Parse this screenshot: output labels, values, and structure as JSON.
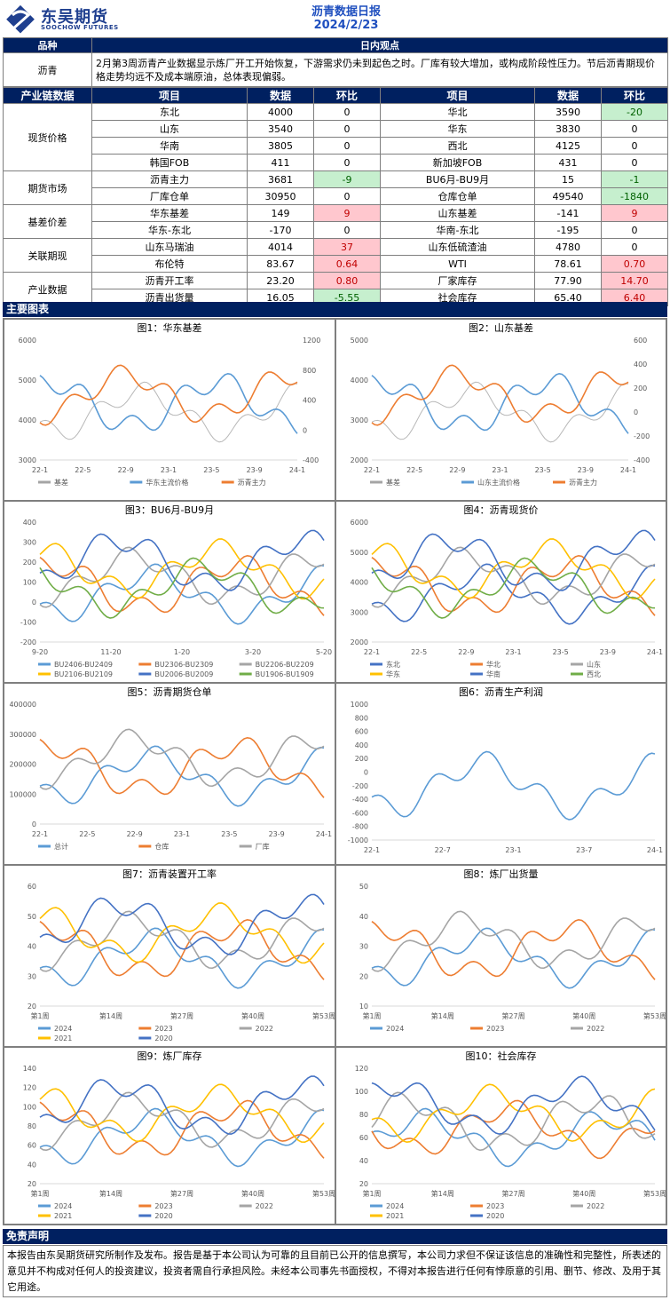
{
  "header": {
    "logo_main": "东吴期货",
    "logo_sub": "SOOCHOW FUTURES",
    "title": "沥青数据日报",
    "date": "2024/2/23"
  },
  "summary": {
    "col1": "品种",
    "col2": "日内观点",
    "variety": "沥青",
    "text": "2月第3周沥青产业数据显示炼厂开工开始恢复，下游需求仍未到起色之时。厂库有较大增加，或构成阶段性压力。节后沥青期现价格走势均远不及成本端原油，总体表现偏弱。"
  },
  "table": {
    "headers": [
      "产业链数据",
      "项目",
      "数据",
      "环比",
      "项目",
      "数据",
      "环比"
    ],
    "groups": [
      {
        "category": "现货价格",
        "rows": [
          [
            "东北",
            "4000",
            "0",
            "",
            "华北",
            "3590",
            "-20",
            "neg"
          ],
          [
            "山东",
            "3540",
            "0",
            "",
            "华东",
            "3830",
            "0",
            ""
          ],
          [
            "华南",
            "3805",
            "0",
            "",
            "西北",
            "4125",
            "0",
            ""
          ],
          [
            "韩国FOB",
            "411",
            "0",
            "",
            "新加坡FOB",
            "431",
            "0",
            ""
          ]
        ]
      },
      {
        "category": "期货市场",
        "rows": [
          [
            "沥青主力",
            "3681",
            "-9",
            "neg",
            "BU6月-BU9月",
            "15",
            "-1",
            "neg"
          ],
          [
            "厂库仓单",
            "30950",
            "0",
            "",
            "仓库仓单",
            "49540",
            "-1840",
            "neg"
          ]
        ]
      },
      {
        "category": "基差价差",
        "rows": [
          [
            "华东基差",
            "149",
            "9",
            "pos",
            "山东基差",
            "-141",
            "9",
            "pos"
          ],
          [
            "华东-东北",
            "-170",
            "0",
            "",
            "华南-东北",
            "-195",
            "0",
            ""
          ]
        ]
      },
      {
        "category": "关联期现",
        "rows": [
          [
            "山东马瑞油",
            "4014",
            "37",
            "pos",
            "山东低硫渣油",
            "4780",
            "0",
            ""
          ],
          [
            "布伦特",
            "83.67",
            "0.64",
            "pos",
            "WTI",
            "78.61",
            "0.70",
            "pos"
          ]
        ]
      },
      {
        "category": "产业数据",
        "rows": [
          [
            "沥青开工率",
            "23.20",
            "0.80",
            "pos",
            "厂家库存",
            "77.90",
            "14.70",
            "pos"
          ],
          [
            "沥青出货量",
            "16.05",
            "-5.55",
            "neg",
            "社会库存",
            "65.40",
            "6.40",
            "pos"
          ]
        ]
      }
    ]
  },
  "section_charts": "主要图表",
  "colors": {
    "navy": "#002060",
    "blue": "#5b9bd5",
    "orange": "#ed7d31",
    "gray": "#a5a5a5",
    "yellow": "#ffc000",
    "darkblue": "#4472c4",
    "green": "#70ad47"
  },
  "charts": {
    "c1": {
      "title": "图1：华东基差",
      "xticks": [
        "22-1",
        "22-5",
        "22-9",
        "23-1",
        "23-5",
        "23-9",
        "24-1"
      ],
      "yticks": [
        "6000",
        "5000",
        "4000",
        "3000"
      ],
      "y2ticks": [
        "1200",
        "800",
        "400",
        "0",
        "-400"
      ],
      "legend": [
        "基差",
        "华东主流价格",
        "沥青主力"
      ]
    },
    "c2": {
      "title": "图2：山东基差",
      "xticks": [
        "22-1",
        "22-5",
        "22-9",
        "23-1",
        "23-5",
        "23-9",
        "24-1"
      ],
      "yticks": [
        "5000",
        "4000",
        "3000",
        "2000"
      ],
      "y2ticks": [
        "600",
        "400",
        "200",
        "0",
        "-200",
        "-400"
      ],
      "legend": [
        "基差",
        "山东主流价格",
        "沥青主力"
      ]
    },
    "c3": {
      "title": "图3：BU6月-BU9月",
      "xticks": [
        "9-20",
        "11-20",
        "1-20",
        "3-20",
        "5-20"
      ],
      "yticks": [
        "400",
        "300",
        "200",
        "100",
        "0",
        "-100",
        "-200"
      ],
      "legend": [
        "BU2406-BU2409",
        "BU2306-BU2309",
        "BU2206-BU2209",
        "BU2106-BU2109",
        "BU2006-BU2009",
        "BU1906-BU1909"
      ]
    },
    "c4": {
      "title": "图4：沥青现货价",
      "xticks": [
        "22-1",
        "22-5",
        "22-9",
        "23-1",
        "23-5",
        "23-9",
        "24-1"
      ],
      "yticks": [
        "6000",
        "5000",
        "4000",
        "3000",
        "2000"
      ],
      "legend": [
        "东北",
        "华北",
        "山东",
        "华东",
        "华南",
        "西北"
      ]
    },
    "c5": {
      "title": "图5：沥青期货仓单",
      "xticks": [
        "22-1",
        "22-5",
        "22-9",
        "23-1",
        "23-5",
        "23-9",
        "24-1"
      ],
      "yticks": [
        "400000",
        "300000",
        "200000",
        "100000",
        "0"
      ],
      "legend": [
        "总计",
        "仓库",
        "厂库"
      ]
    },
    "c6": {
      "title": "图6：沥青生产利润",
      "xticks": [
        "22-1",
        "22-7",
        "23-1",
        "23-7",
        "24-1"
      ],
      "yticks": [
        "1000",
        "800",
        "600",
        "400",
        "200",
        "0",
        "-200",
        "-400",
        "-600",
        "-800",
        "-1000"
      ],
      "legend": []
    },
    "c7": {
      "title": "图7：沥青装置开工率",
      "xticks": [
        "第1周",
        "第14周",
        "第27周",
        "第40周",
        "第53周"
      ],
      "yticks": [
        "60",
        "50",
        "40",
        "30",
        "20"
      ],
      "legend": [
        "2024",
        "2023",
        "2022",
        "2021",
        "2020"
      ]
    },
    "c8": {
      "title": "图8：炼厂出货量",
      "xticks": [
        "第1周",
        "第14周",
        "第27周",
        "第40周",
        "第53周"
      ],
      "yticks": [
        "50",
        "40",
        "30",
        "20",
        "10"
      ],
      "legend": [
        "2024",
        "2023",
        "2022"
      ]
    },
    "c9": {
      "title": "图9：炼厂库存",
      "xticks": [
        "第1周",
        "第14周",
        "第27周",
        "第40周",
        "第53周"
      ],
      "yticks": [
        "140",
        "120",
        "100",
        "80",
        "60",
        "40",
        "20"
      ],
      "legend": [
        "2024",
        "2023",
        "2022",
        "2021",
        "2020"
      ]
    },
    "c10": {
      "title": "图10：社会库存",
      "xticks": [
        "第1周",
        "第14周",
        "第27周",
        "第40周",
        "第53周"
      ],
      "yticks": [
        "120",
        "100",
        "80",
        "60",
        "40",
        "20"
      ],
      "legend": [
        "2024",
        "2023",
        "2022",
        "2021",
        "2020"
      ]
    }
  },
  "disclaimer": {
    "title": "免责声明",
    "text": "本报告由东吴期货研究所制作及发布。报告是基于本公司认为可靠的且目前已公开的信息撰写，本公司力求但不保证该信息的准确性和完整性，所表述的意见并不构成对任何人的投资建议，投资者需自行承担风险。未经本公司事先书面授权，不得对本报告进行任何有悖原意的引用、删节、修改、及用于其它用途。"
  }
}
